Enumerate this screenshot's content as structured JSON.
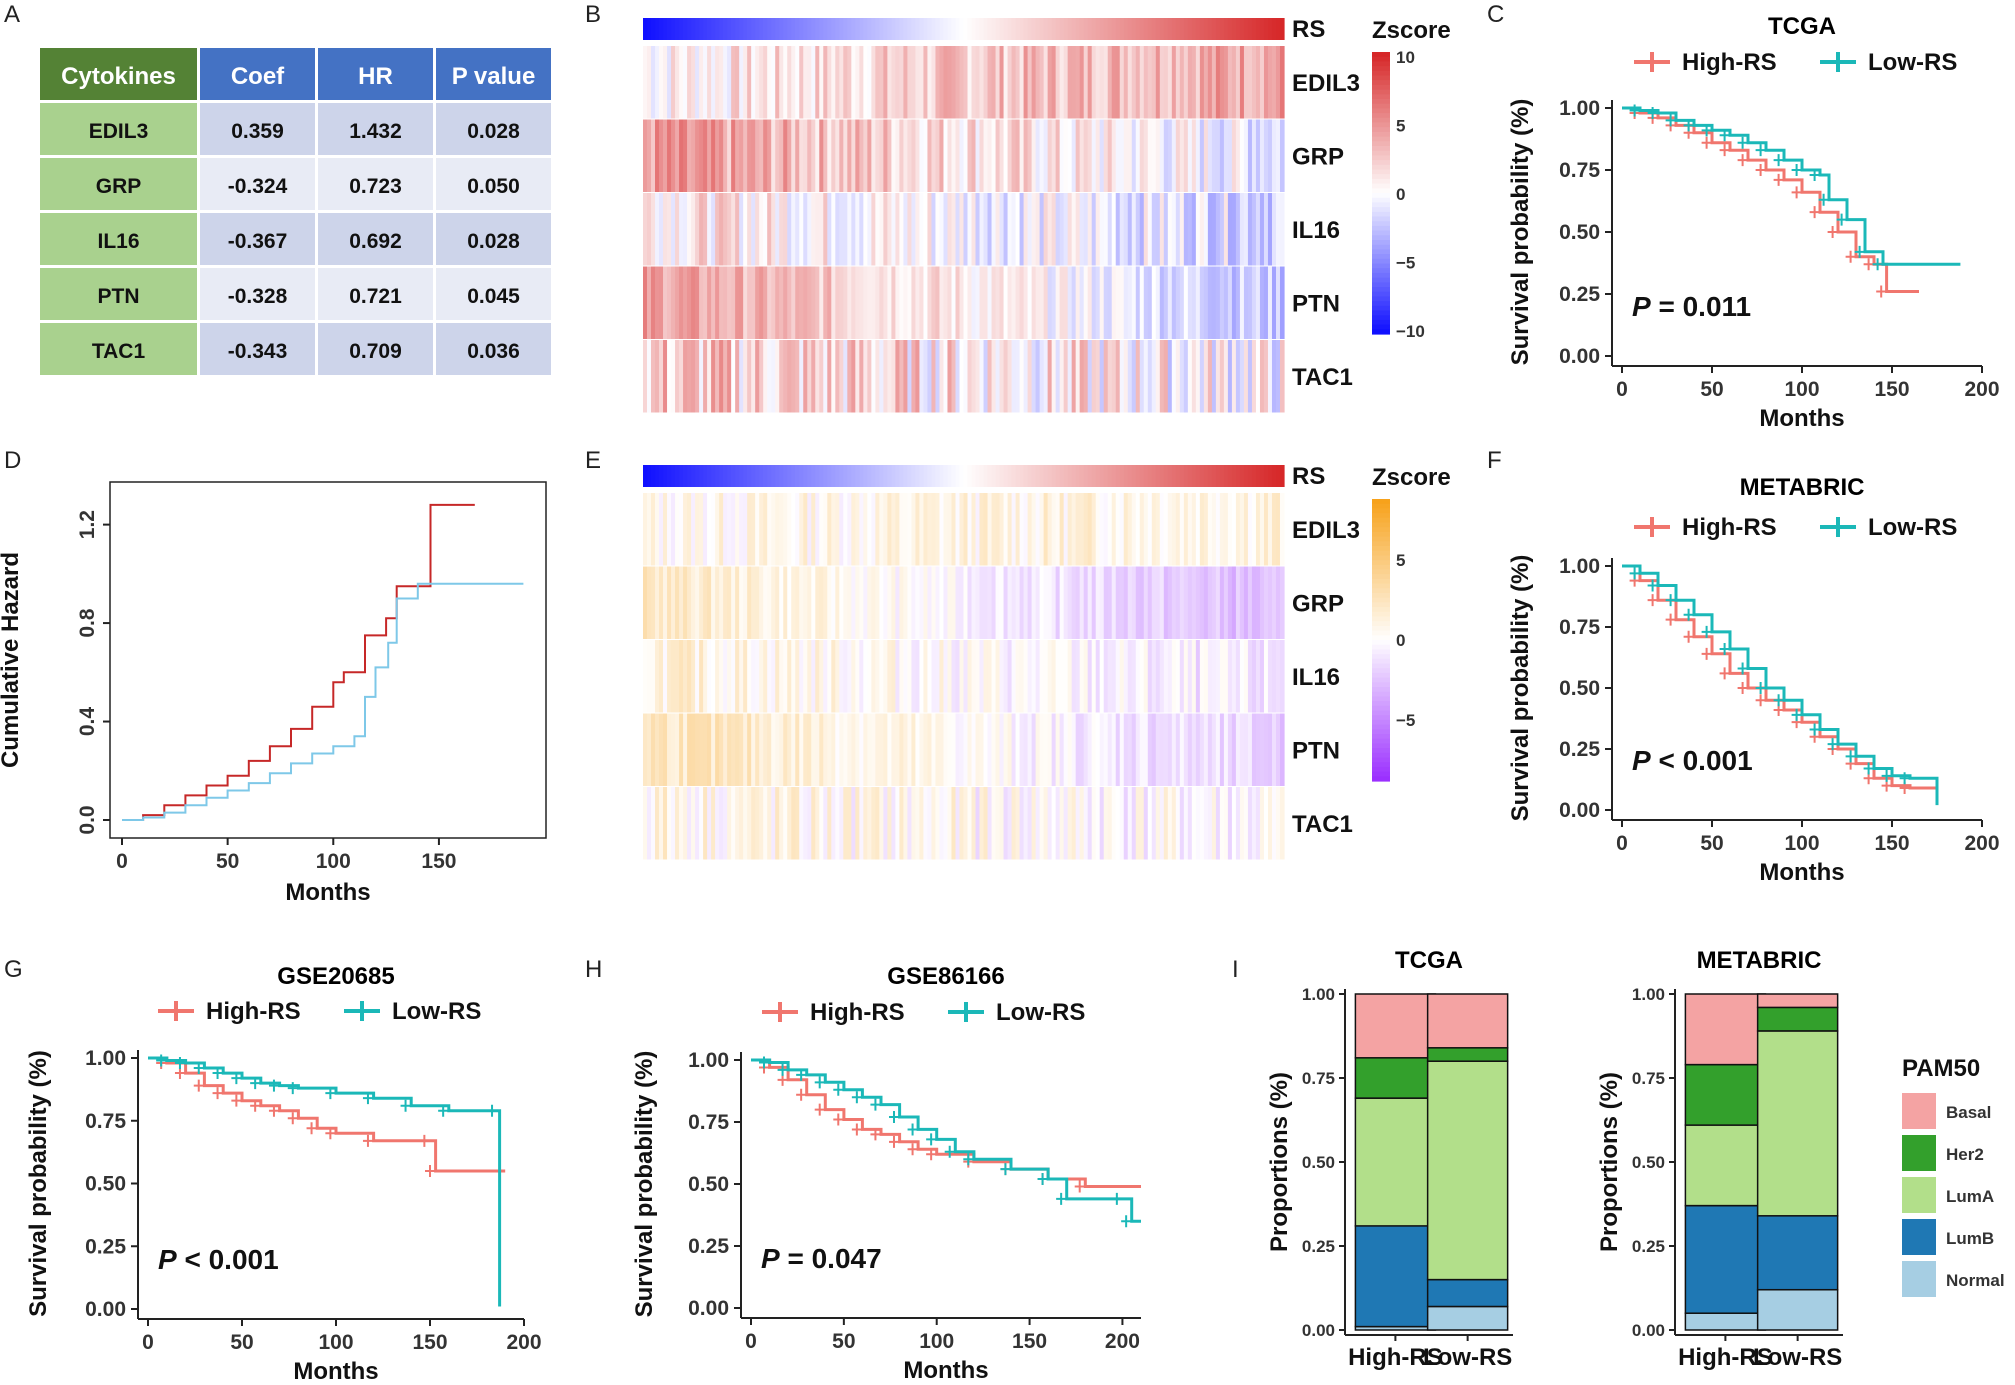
{
  "panel_labels": [
    "A",
    "B",
    "C",
    "D",
    "E",
    "F",
    "G",
    "H",
    "I"
  ],
  "colors": {
    "high": "#f0766e",
    "low": "#1bb8b8",
    "hazard_high": "#c62828",
    "hazard_low": "#7ec8e8",
    "table_header_first": "#548235",
    "table_header": "#4472c4",
    "table_first_col": "#a9d18e",
    "table_row_a": "#cdd4ea",
    "table_row_b": "#e8ebf5",
    "basal": "#f4a3a3",
    "her2": "#33a02c",
    "luma": "#b2df8a",
    "lumb": "#1f78b4",
    "normal": "#a6cee3"
  },
  "table": {
    "headers": [
      "Cytokines",
      "Coef",
      "HR",
      "P value"
    ],
    "rows": [
      [
        "EDIL3",
        "0.359",
        "1.432",
        "0.028"
      ],
      [
        "GRP",
        "-0.324",
        "0.723",
        "0.050"
      ],
      [
        "IL16",
        "-0.367",
        "0.692",
        "0.028"
      ],
      [
        "PTN",
        "-0.328",
        "0.721",
        "0.045"
      ],
      [
        "TAC1",
        "-0.343",
        "0.709",
        "0.036"
      ]
    ]
  },
  "heatmaps": [
    {
      "panel": "B",
      "rs_label": "RS",
      "genes": [
        "EDIL3",
        "GRP",
        "IL16",
        "PTN",
        "TAC1"
      ],
      "legend_title": "Zscore",
      "legend_ticks": [
        "10",
        "5",
        "0",
        "−5",
        "−10"
      ],
      "scale_colors": {
        "high": "#d62728",
        "mid": "#ffffff",
        "low": "#1010ff"
      }
    },
    {
      "panel": "E",
      "rs_label": "RS",
      "genes": [
        "EDIL3",
        "GRP",
        "IL16",
        "PTN",
        "TAC1"
      ],
      "legend_title": "Zscore",
      "legend_ticks": [
        "5",
        "0",
        "−5"
      ],
      "scale_colors": {
        "high": "#f7a21b",
        "mid": "#ffffff",
        "low": "#9b30ff"
      }
    }
  ],
  "chart_data": [
    {
      "panel": "C",
      "type": "line",
      "title": "TCGA",
      "xlabel": "Months",
      "ylabel": "Survival probability (%)",
      "xlim": [
        0,
        200
      ],
      "ylim": [
        0,
        1
      ],
      "xticks": [
        "0",
        "50",
        "100",
        "150",
        "200"
      ],
      "yticks": [
        "0.00",
        "0.25",
        "0.50",
        "0.75",
        "1.00"
      ],
      "legend": [
        "High-RS",
        "Low-RS"
      ],
      "annotation": {
        "p_letter": "P",
        "rest": " = 0.011"
      },
      "series": [
        {
          "name": "High-RS",
          "points": [
            [
              0,
              1
            ],
            [
              10,
              0.98
            ],
            [
              20,
              0.96
            ],
            [
              30,
              0.93
            ],
            [
              40,
              0.9
            ],
            [
              50,
              0.86
            ],
            [
              60,
              0.83
            ],
            [
              70,
              0.79
            ],
            [
              80,
              0.75
            ],
            [
              90,
              0.71
            ],
            [
              100,
              0.66
            ],
            [
              110,
              0.58
            ],
            [
              120,
              0.5
            ],
            [
              130,
              0.4
            ],
            [
              140,
              0.37
            ],
            [
              147,
              0.26
            ],
            [
              165,
              0.26
            ]
          ]
        },
        {
          "name": "Low-RS",
          "points": [
            [
              0,
              1
            ],
            [
              10,
              0.99
            ],
            [
              20,
              0.98
            ],
            [
              30,
              0.95
            ],
            [
              40,
              0.93
            ],
            [
              50,
              0.91
            ],
            [
              60,
              0.89
            ],
            [
              70,
              0.86
            ],
            [
              80,
              0.83
            ],
            [
              90,
              0.79
            ],
            [
              100,
              0.75
            ],
            [
              110,
              0.73
            ],
            [
              115,
              0.63
            ],
            [
              125,
              0.55
            ],
            [
              135,
              0.42
            ],
            [
              145,
              0.37
            ],
            [
              188,
              0.37
            ]
          ]
        }
      ]
    },
    {
      "panel": "D",
      "type": "line",
      "title": "",
      "xlabel": "Months",
      "ylabel": "Cumulative Hazard",
      "xlim": [
        0,
        195
      ],
      "ylim": [
        0,
        1.3
      ],
      "xticks": [
        "0",
        "50",
        "100",
        "150"
      ],
      "yticks": [
        "0.0",
        "0.4",
        "0.8",
        "1.2"
      ],
      "series": [
        {
          "name": "High-RS",
          "points": [
            [
              0,
              0
            ],
            [
              10,
              0.02
            ],
            [
              20,
              0.06
            ],
            [
              30,
              0.1
            ],
            [
              40,
              0.14
            ],
            [
              50,
              0.18
            ],
            [
              60,
              0.24
            ],
            [
              70,
              0.3
            ],
            [
              80,
              0.37
            ],
            [
              90,
              0.46
            ],
            [
              100,
              0.56
            ],
            [
              105,
              0.6
            ],
            [
              115,
              0.75
            ],
            [
              125,
              0.82
            ],
            [
              130,
              0.95
            ],
            [
              140,
              0.95
            ],
            [
              146,
              1.28
            ],
            [
              167,
              1.28
            ]
          ]
        },
        {
          "name": "Low-RS",
          "points": [
            [
              0,
              0
            ],
            [
              10,
              0.01
            ],
            [
              20,
              0.03
            ],
            [
              30,
              0.06
            ],
            [
              40,
              0.09
            ],
            [
              50,
              0.12
            ],
            [
              60,
              0.15
            ],
            [
              70,
              0.19
            ],
            [
              80,
              0.23
            ],
            [
              90,
              0.27
            ],
            [
              100,
              0.3
            ],
            [
              110,
              0.34
            ],
            [
              115,
              0.5
            ],
            [
              120,
              0.62
            ],
            [
              126,
              0.72
            ],
            [
              130,
              0.9
            ],
            [
              140,
              0.96
            ],
            [
              190,
              0.96
            ]
          ]
        }
      ]
    },
    {
      "panel": "F",
      "type": "line",
      "title": "METABRIC",
      "xlabel": "Months",
      "ylabel": "Survival probability (%)",
      "xlim": [
        0,
        200
      ],
      "ylim": [
        0,
        1
      ],
      "xticks": [
        "0",
        "50",
        "100",
        "150",
        "200"
      ],
      "yticks": [
        "0.00",
        "0.25",
        "0.50",
        "0.75",
        "1.00"
      ],
      "legend": [
        "High-RS",
        "Low-RS"
      ],
      "annotation": {
        "p_letter": "P",
        "rest": " < 0.001"
      },
      "series": [
        {
          "name": "High-RS",
          "points": [
            [
              0,
              1
            ],
            [
              10,
              0.94
            ],
            [
              20,
              0.86
            ],
            [
              30,
              0.78
            ],
            [
              40,
              0.71
            ],
            [
              50,
              0.64
            ],
            [
              60,
              0.56
            ],
            [
              70,
              0.5
            ],
            [
              80,
              0.45
            ],
            [
              90,
              0.41
            ],
            [
              100,
              0.36
            ],
            [
              110,
              0.3
            ],
            [
              120,
              0.25
            ],
            [
              130,
              0.19
            ],
            [
              140,
              0.13
            ],
            [
              150,
              0.1
            ],
            [
              160,
              0.09
            ],
            [
              175,
              0.03
            ]
          ]
        },
        {
          "name": "Low-RS",
          "points": [
            [
              0,
              1
            ],
            [
              10,
              0.97
            ],
            [
              20,
              0.92
            ],
            [
              30,
              0.86
            ],
            [
              40,
              0.8
            ],
            [
              50,
              0.73
            ],
            [
              60,
              0.66
            ],
            [
              70,
              0.58
            ],
            [
              80,
              0.5
            ],
            [
              90,
              0.45
            ],
            [
              100,
              0.39
            ],
            [
              110,
              0.33
            ],
            [
              120,
              0.27
            ],
            [
              130,
              0.22
            ],
            [
              140,
              0.17
            ],
            [
              150,
              0.14
            ],
            [
              160,
              0.13
            ],
            [
              175,
              0.02
            ]
          ]
        }
      ]
    },
    {
      "panel": "G",
      "type": "line",
      "title": "GSE20685",
      "xlabel": "Months",
      "ylabel": "Survival probability (%)",
      "xlim": [
        0,
        200
      ],
      "ylim": [
        0,
        1
      ],
      "xticks": [
        "0",
        "50",
        "100",
        "150",
        "200"
      ],
      "yticks": [
        "0.00",
        "0.25",
        "0.50",
        "0.75",
        "1.00"
      ],
      "legend": [
        "High-RS",
        "Low-RS"
      ],
      "annotation": {
        "p_letter": "P",
        "rest": " < 0.001"
      },
      "series": [
        {
          "name": "High-RS",
          "points": [
            [
              0,
              1
            ],
            [
              10,
              0.98
            ],
            [
              20,
              0.94
            ],
            [
              30,
              0.89
            ],
            [
              40,
              0.86
            ],
            [
              50,
              0.83
            ],
            [
              60,
              0.81
            ],
            [
              70,
              0.79
            ],
            [
              80,
              0.76
            ],
            [
              90,
              0.72
            ],
            [
              100,
              0.7
            ],
            [
              120,
              0.67
            ],
            [
              150,
              0.67
            ],
            [
              153,
              0.55
            ],
            [
              190,
              0.55
            ]
          ]
        },
        {
          "name": "Low-RS",
          "points": [
            [
              0,
              1
            ],
            [
              10,
              0.99
            ],
            [
              20,
              0.98
            ],
            [
              30,
              0.96
            ],
            [
              40,
              0.94
            ],
            [
              50,
              0.92
            ],
            [
              60,
              0.9
            ],
            [
              70,
              0.89
            ],
            [
              80,
              0.88
            ],
            [
              100,
              0.86
            ],
            [
              120,
              0.84
            ],
            [
              140,
              0.81
            ],
            [
              160,
              0.79
            ],
            [
              186,
              0.79
            ],
            [
              187,
              0.01
            ]
          ]
        }
      ]
    },
    {
      "panel": "H",
      "type": "line",
      "title": "GSE86166",
      "xlabel": "Months",
      "ylabel": "Survival probability (%)",
      "xlim": [
        0,
        210
      ],
      "ylim": [
        0,
        1
      ],
      "xticks": [
        "0",
        "50",
        "100",
        "150",
        "200"
      ],
      "yticks": [
        "0.00",
        "0.25",
        "0.50",
        "0.75",
        "1.00"
      ],
      "legend": [
        "High-RS",
        "Low-RS"
      ],
      "annotation": {
        "p_letter": "P",
        "rest": " = 0.047"
      },
      "series": [
        {
          "name": "High-RS",
          "points": [
            [
              0,
              1
            ],
            [
              10,
              0.97
            ],
            [
              20,
              0.92
            ],
            [
              30,
              0.86
            ],
            [
              40,
              0.8
            ],
            [
              50,
              0.76
            ],
            [
              60,
              0.72
            ],
            [
              70,
              0.7
            ],
            [
              80,
              0.67
            ],
            [
              90,
              0.64
            ],
            [
              100,
              0.62
            ],
            [
              120,
              0.59
            ],
            [
              140,
              0.56
            ],
            [
              160,
              0.52
            ],
            [
              180,
              0.49
            ],
            [
              210,
              0.49
            ]
          ]
        },
        {
          "name": "Low-RS",
          "points": [
            [
              0,
              1
            ],
            [
              10,
              0.99
            ],
            [
              20,
              0.96
            ],
            [
              30,
              0.94
            ],
            [
              40,
              0.91
            ],
            [
              50,
              0.88
            ],
            [
              60,
              0.85
            ],
            [
              70,
              0.82
            ],
            [
              80,
              0.77
            ],
            [
              90,
              0.72
            ],
            [
              100,
              0.68
            ],
            [
              110,
              0.63
            ],
            [
              120,
              0.6
            ],
            [
              140,
              0.56
            ],
            [
              160,
              0.52
            ],
            [
              170,
              0.44
            ],
            [
              200,
              0.44
            ],
            [
              205,
              0.35
            ],
            [
              210,
              0.35
            ]
          ]
        }
      ]
    },
    {
      "panel": "I-left",
      "type": "bar",
      "title": "TCGA",
      "significance": "***",
      "ylabel": "Proportions (%)",
      "ylim": [
        0,
        1
      ],
      "yticks": [
        "0.00",
        "0.25",
        "0.50",
        "0.75",
        "1.00"
      ],
      "categories": [
        "High-RS",
        "Low-RS"
      ],
      "stack_order": [
        "Normal",
        "LumB",
        "LumA",
        "Her2",
        "Basal"
      ],
      "series": [
        {
          "name": "Normal",
          "values": [
            0.01,
            0.07
          ]
        },
        {
          "name": "LumB",
          "values": [
            0.3,
            0.08
          ]
        },
        {
          "name": "LumA",
          "values": [
            0.38,
            0.65
          ]
        },
        {
          "name": "Her2",
          "values": [
            0.12,
            0.04
          ]
        },
        {
          "name": "Basal",
          "values": [
            0.19,
            0.16
          ]
        }
      ]
    },
    {
      "panel": "I-right",
      "type": "bar",
      "title": "METABRIC",
      "significance": "***",
      "ylabel": "Proportions (%)",
      "ylim": [
        0,
        1
      ],
      "yticks": [
        "0.00",
        "0.25",
        "0.50",
        "0.75",
        "1.00"
      ],
      "categories": [
        "High-RS",
        "Low-RS"
      ],
      "stack_order": [
        "Normal",
        "LumB",
        "LumA",
        "Her2",
        "Basal"
      ],
      "legend_title": "PAM50",
      "legend": [
        "Basal",
        "Her2",
        "LumA",
        "LumB",
        "Normal"
      ],
      "series": [
        {
          "name": "Normal",
          "values": [
            0.05,
            0.12
          ]
        },
        {
          "name": "LumB",
          "values": [
            0.32,
            0.22
          ]
        },
        {
          "name": "LumA",
          "values": [
            0.24,
            0.55
          ]
        },
        {
          "name": "Her2",
          "values": [
            0.18,
            0.07
          ]
        },
        {
          "name": "Basal",
          "values": [
            0.21,
            0.04
          ]
        }
      ]
    }
  ]
}
